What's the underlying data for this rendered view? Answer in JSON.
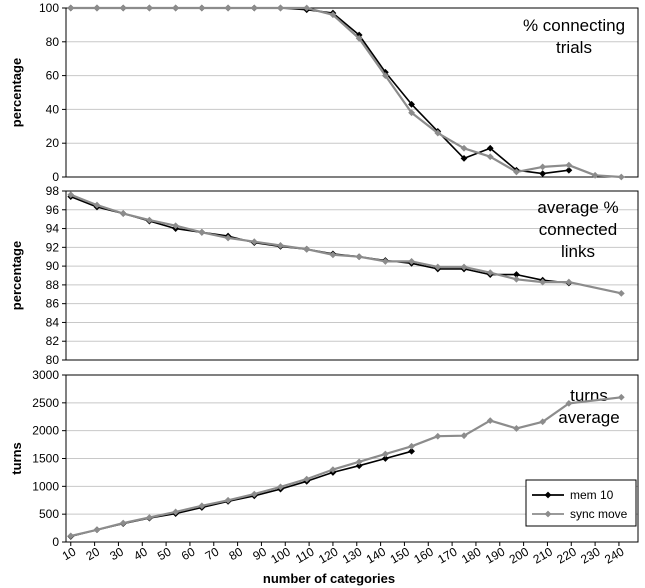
{
  "colors": {
    "mem10": "#000000",
    "sync": "#8c8c8c",
    "grid": "#c8c8c8"
  },
  "chart_data": [
    {
      "type": "line",
      "title_lines": [
        "% connecting",
        "trials"
      ],
      "xlabel": "",
      "ylabel": "percentage",
      "xlim": [
        8,
        248
      ],
      "ylim": [
        0,
        100
      ],
      "yticks": [
        0,
        20,
        40,
        60,
        80,
        100
      ],
      "grid": true,
      "series": [
        {
          "name": "mem 10",
          "x": [
            10,
            21,
            32,
            43,
            54,
            65,
            76,
            87,
            98,
            109,
            120,
            131,
            142,
            153,
            164,
            175,
            186,
            197,
            208,
            219
          ],
          "y": [
            100,
            100,
            100,
            100,
            100,
            100,
            100,
            100,
            100,
            99,
            97,
            84,
            62,
            43,
            27,
            11,
            17,
            4,
            2,
            4
          ]
        },
        {
          "name": "sync move",
          "x": [
            10,
            21,
            32,
            43,
            54,
            65,
            76,
            87,
            98,
            109,
            120,
            131,
            142,
            153,
            164,
            175,
            186,
            197,
            208,
            219,
            230,
            241
          ],
          "y": [
            100,
            100,
            100,
            100,
            100,
            100,
            100,
            100,
            100,
            100,
            96,
            82,
            60,
            38,
            26,
            17,
            12,
            3,
            6,
            7,
            1,
            0
          ]
        }
      ]
    },
    {
      "type": "line",
      "title_lines": [
        "average %",
        "connected",
        "links"
      ],
      "xlabel": "",
      "ylabel": "percentage",
      "xlim": [
        8,
        248
      ],
      "ylim": [
        80,
        98
      ],
      "yticks": [
        80,
        82,
        84,
        86,
        88,
        90,
        92,
        94,
        96,
        98
      ],
      "grid": true,
      "series": [
        {
          "name": "mem 10",
          "x": [
            10,
            21,
            32,
            43,
            54,
            65,
            76,
            87,
            98,
            109,
            120,
            131,
            142,
            153,
            164,
            175,
            186,
            197,
            208,
            219
          ],
          "y": [
            97.4,
            96.3,
            95.6,
            94.8,
            94.0,
            93.6,
            93.2,
            92.5,
            92.1,
            91.8,
            91.3,
            91.0,
            90.6,
            90.3,
            89.7,
            89.7,
            89.1,
            89.1,
            88.5,
            88.2
          ]
        },
        {
          "name": "sync move",
          "x": [
            10,
            21,
            32,
            43,
            54,
            65,
            76,
            87,
            98,
            109,
            120,
            131,
            142,
            153,
            164,
            175,
            186,
            197,
            208,
            219,
            241
          ],
          "y": [
            97.6,
            96.5,
            95.6,
            94.9,
            94.3,
            93.6,
            93.0,
            92.6,
            92.2,
            91.8,
            91.2,
            91.0,
            90.5,
            90.5,
            89.9,
            89.9,
            89.3,
            88.6,
            88.3,
            88.3,
            87.1
          ]
        }
      ]
    },
    {
      "type": "line",
      "title_lines": [
        "turns",
        "average"
      ],
      "xlabel": "number of categories",
      "ylabel": "turns",
      "xlim": [
        8,
        248
      ],
      "ylim": [
        0,
        3000
      ],
      "yticks": [
        0,
        500,
        1000,
        1500,
        2000,
        2500,
        3000
      ],
      "xticks": [
        10,
        20,
        30,
        40,
        50,
        60,
        70,
        80,
        90,
        100,
        110,
        120,
        130,
        140,
        150,
        160,
        170,
        180,
        190,
        200,
        210,
        220,
        230,
        240
      ],
      "grid": true,
      "legend": {
        "position": "bottom-right",
        "entries": [
          "mem 10",
          "sync move"
        ]
      },
      "series": [
        {
          "name": "mem 10",
          "x": [
            10,
            21,
            32,
            43,
            54,
            65,
            76,
            87,
            98,
            109,
            120,
            131,
            142,
            153
          ],
          "y": [
            100,
            220,
            330,
            430,
            510,
            620,
            730,
            830,
            950,
            1090,
            1250,
            1370,
            1500,
            1630
          ]
        },
        {
          "name": "sync move",
          "x": [
            10,
            21,
            32,
            43,
            54,
            65,
            76,
            87,
            98,
            109,
            120,
            131,
            142,
            153,
            164,
            175,
            186,
            197,
            208,
            219,
            241
          ],
          "y": [
            110,
            220,
            340,
            440,
            540,
            650,
            750,
            860,
            990,
            1130,
            1300,
            1440,
            1580,
            1720,
            1900,
            1910,
            2180,
            2040,
            2160,
            2490,
            2600
          ]
        }
      ]
    }
  ]
}
